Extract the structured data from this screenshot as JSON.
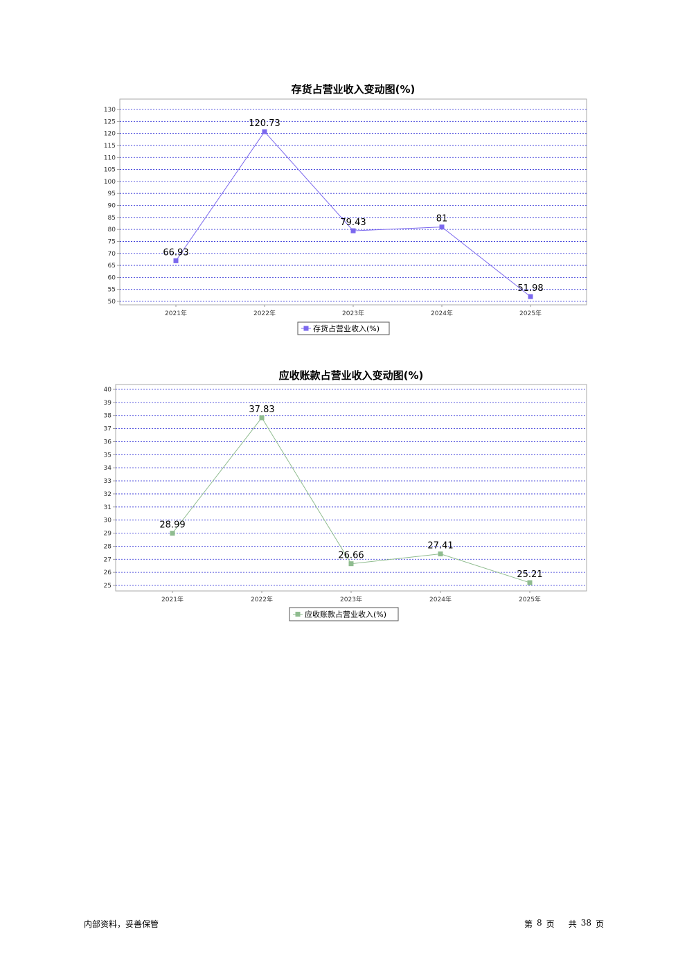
{
  "footer": {
    "confidential": "内部资料，妥善保管",
    "page_prefix": "第",
    "page_number": "8",
    "page_suffix": "页",
    "total_prefix": "共",
    "total_pages": "38",
    "total_suffix": "页"
  },
  "chart_data": [
    {
      "type": "line",
      "title": "存货占营业收入变动图(%)",
      "categories": [
        "2021年",
        "2022年",
        "2023年",
        "2024年",
        "2025年"
      ],
      "series": [
        {
          "name": "存货占营业收入(%)",
          "values": [
            66.93,
            120.73,
            79.43,
            81,
            51.98
          ],
          "labels": [
            "66.93",
            "120.73",
            "79.43",
            "81",
            "51.98"
          ],
          "color": "#7b68ee"
        }
      ],
      "y_ticks": [
        "130",
        "125",
        "120",
        "115",
        "110",
        "105",
        "100",
        "95",
        "90",
        "85",
        "80",
        "75",
        "70",
        "65",
        "60",
        "55",
        "50"
      ],
      "ylim": [
        50,
        130
      ],
      "grid": true,
      "grid_color": "#2b2bd6",
      "legend": "bottom-center"
    },
    {
      "type": "line",
      "title": "应收账款占营业收入变动图(%)",
      "categories": [
        "2021年",
        "2022年",
        "2023年",
        "2024年",
        "2025年"
      ],
      "series": [
        {
          "name": "应收账款占营业收入(%)",
          "values": [
            28.99,
            37.83,
            26.66,
            27.41,
            25.21
          ],
          "labels": [
            "28.99",
            "37.83",
            "26.66",
            "27.41",
            "25.21"
          ],
          "color": "#8fbc8f"
        }
      ],
      "y_ticks": [
        "40",
        "39",
        "38",
        "37",
        "36",
        "35",
        "34",
        "33",
        "32",
        "31",
        "30",
        "29",
        "28",
        "27",
        "26",
        "25"
      ],
      "ylim": [
        25,
        40
      ],
      "grid": true,
      "grid_color": "#2b2bd6",
      "legend": "bottom-center"
    }
  ]
}
